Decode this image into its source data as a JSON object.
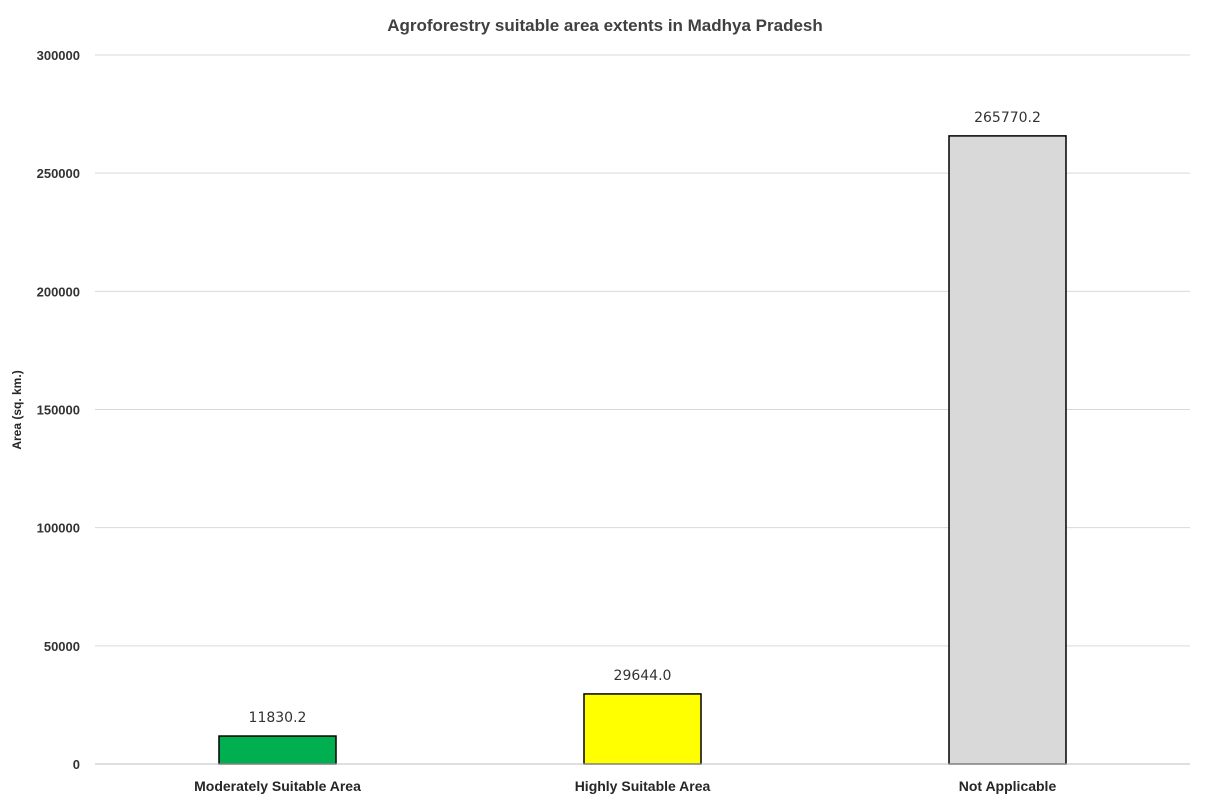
{
  "chart_data": {
    "type": "bar",
    "title": "Agroforestry suitable area extents in Madhya Pradesh",
    "xlabel": "",
    "ylabel": "Area (sq. km.)",
    "categories": [
      "Moderately Suitable Area",
      "Highly Suitable Area",
      "Not Applicable"
    ],
    "values": [
      11830.2,
      29644.0,
      265770.2
    ],
    "data_labels": [
      "11830.2",
      "29644.0",
      "265770.2"
    ],
    "colors": [
      "#00b050",
      "#ffff00",
      "#d9d9d9"
    ],
    "ylim": [
      0,
      300000
    ],
    "yticks": [
      0,
      50000,
      100000,
      150000,
      200000,
      250000,
      300000
    ],
    "ytick_labels": [
      "0",
      "50000",
      "100000",
      "150000",
      "200000",
      "250000",
      "300000"
    ],
    "grid": true,
    "legend": "none"
  }
}
